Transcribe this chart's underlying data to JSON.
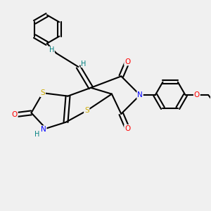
{
  "bg_color": "#f0f0f0",
  "atom_colors": {
    "C": "#000000",
    "N": "#0000ff",
    "O": "#ff0000",
    "S": "#ccaa00",
    "H": "#008080"
  },
  "figsize": [
    3.0,
    3.0
  ],
  "dpi": 100
}
